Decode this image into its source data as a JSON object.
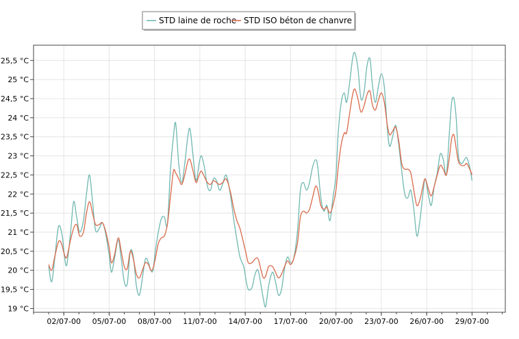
{
  "chart_data": {
    "type": "line",
    "title": "",
    "xlabel": "",
    "ylabel": "",
    "ylim": [
      18.9,
      25.9
    ],
    "xlim": [
      0,
      31.2
    ],
    "grid": true,
    "legend_position": "top-center",
    "y_ticks": [
      {
        "value": 19,
        "label": "19 °C"
      },
      {
        "value": 19.5,
        "label": "19,5 °C"
      },
      {
        "value": 20,
        "label": "20 °C"
      },
      {
        "value": 20.5,
        "label": "20,5 °C"
      },
      {
        "value": 21,
        "label": "21 °C"
      },
      {
        "value": 21.5,
        "label": "21,5 °C"
      },
      {
        "value": 22,
        "label": "22 °C"
      },
      {
        "value": 22.5,
        "label": "22,5 °C"
      },
      {
        "value": 23,
        "label": "23 °C"
      },
      {
        "value": 23.5,
        "label": "23,5 °C"
      },
      {
        "value": 24,
        "label": "24 °C"
      },
      {
        "value": 24.5,
        "label": "24,5 °C"
      },
      {
        "value": 25,
        "label": "25 °C"
      },
      {
        "value": 25.5,
        "label": "25,5 °C"
      }
    ],
    "x_ticks": [
      {
        "value": 2,
        "label": "02/07-00"
      },
      {
        "value": 5,
        "label": "05/07-00"
      },
      {
        "value": 8,
        "label": "08/07-00"
      },
      {
        "value": 11,
        "label": "11/07-00"
      },
      {
        "value": 14,
        "label": "14/07-00"
      },
      {
        "value": 17,
        "label": "17/07-00"
      },
      {
        "value": 20,
        "label": "20/07-00"
      },
      {
        "value": 23,
        "label": "23/07-00"
      },
      {
        "value": 26,
        "label": "26/07-00"
      },
      {
        "value": 29,
        "label": "29/07-00"
      }
    ],
    "series": [
      {
        "name": "STD laine de roche",
        "color": "#6fb7b0",
        "points": [
          [
            1.0,
            20.1
          ],
          [
            1.2,
            19.7
          ],
          [
            1.4,
            20.3
          ],
          [
            1.65,
            21.15
          ],
          [
            1.9,
            20.9
          ],
          [
            2.05,
            20.35
          ],
          [
            2.2,
            20.15
          ],
          [
            2.45,
            21.0
          ],
          [
            2.65,
            21.8
          ],
          [
            2.85,
            21.4
          ],
          [
            3.05,
            21.0
          ],
          [
            3.3,
            21.3
          ],
          [
            3.5,
            22.0
          ],
          [
            3.7,
            22.5
          ],
          [
            3.9,
            21.8
          ],
          [
            4.1,
            21.05
          ],
          [
            4.35,
            21.1
          ],
          [
            4.55,
            21.25
          ],
          [
            4.75,
            21.0
          ],
          [
            5.0,
            20.4
          ],
          [
            5.15,
            19.95
          ],
          [
            5.35,
            20.3
          ],
          [
            5.6,
            20.8
          ],
          [
            5.8,
            20.3
          ],
          [
            6.0,
            19.7
          ],
          [
            6.2,
            19.65
          ],
          [
            6.4,
            20.5
          ],
          [
            6.6,
            20.35
          ],
          [
            6.8,
            19.6
          ],
          [
            7.0,
            19.35
          ],
          [
            7.2,
            19.8
          ],
          [
            7.4,
            20.3
          ],
          [
            7.6,
            20.2
          ],
          [
            7.75,
            20.0
          ],
          [
            7.9,
            20.0
          ],
          [
            8.05,
            20.5
          ],
          [
            8.25,
            21.0
          ],
          [
            8.45,
            21.35
          ],
          [
            8.65,
            21.4
          ],
          [
            8.85,
            21.2
          ],
          [
            9.05,
            22.6
          ],
          [
            9.25,
            23.5
          ],
          [
            9.4,
            23.85
          ],
          [
            9.6,
            22.8
          ],
          [
            9.8,
            22.3
          ],
          [
            10.0,
            22.8
          ],
          [
            10.2,
            23.5
          ],
          [
            10.35,
            23.7
          ],
          [
            10.55,
            23.0
          ],
          [
            10.75,
            22.35
          ],
          [
            10.95,
            22.8
          ],
          [
            11.1,
            23.0
          ],
          [
            11.3,
            22.7
          ],
          [
            11.5,
            22.2
          ],
          [
            11.7,
            22.1
          ],
          [
            11.9,
            22.4
          ],
          [
            12.1,
            22.35
          ],
          [
            12.3,
            22.1
          ],
          [
            12.5,
            22.25
          ],
          [
            12.7,
            22.5
          ],
          [
            12.85,
            22.35
          ],
          [
            13.05,
            21.9
          ],
          [
            13.25,
            21.3
          ],
          [
            13.45,
            20.8
          ],
          [
            13.65,
            20.35
          ],
          [
            13.9,
            20.1
          ],
          [
            14.05,
            19.75
          ],
          [
            14.2,
            19.5
          ],
          [
            14.45,
            19.55
          ],
          [
            14.65,
            19.9
          ],
          [
            14.85,
            20.0
          ],
          [
            15.05,
            19.6
          ],
          [
            15.2,
            19.25
          ],
          [
            15.35,
            19.05
          ],
          [
            15.55,
            19.6
          ],
          [
            15.8,
            19.95
          ],
          [
            16.0,
            19.7
          ],
          [
            16.2,
            19.35
          ],
          [
            16.4,
            19.5
          ],
          [
            16.6,
            20.05
          ],
          [
            16.8,
            20.35
          ],
          [
            17.0,
            20.2
          ],
          [
            17.2,
            20.3
          ],
          [
            17.45,
            21.0
          ],
          [
            17.65,
            22.1
          ],
          [
            17.85,
            22.3
          ],
          [
            18.05,
            22.1
          ],
          [
            18.25,
            22.3
          ],
          [
            18.45,
            22.7
          ],
          [
            18.65,
            22.9
          ],
          [
            18.8,
            22.7
          ],
          [
            19.0,
            21.9
          ],
          [
            19.2,
            21.55
          ],
          [
            19.4,
            21.7
          ],
          [
            19.6,
            21.3
          ],
          [
            19.8,
            21.9
          ],
          [
            20.0,
            22.5
          ],
          [
            20.15,
            23.6
          ],
          [
            20.35,
            24.4
          ],
          [
            20.55,
            24.65
          ],
          [
            20.7,
            24.4
          ],
          [
            20.9,
            24.9
          ],
          [
            21.1,
            25.55
          ],
          [
            21.25,
            25.7
          ],
          [
            21.45,
            25.3
          ],
          [
            21.65,
            24.5
          ],
          [
            21.85,
            24.65
          ],
          [
            22.05,
            25.35
          ],
          [
            22.25,
            25.55
          ],
          [
            22.4,
            24.9
          ],
          [
            22.6,
            24.4
          ],
          [
            22.8,
            24.8
          ],
          [
            23.0,
            25.15
          ],
          [
            23.2,
            24.8
          ],
          [
            23.4,
            23.7
          ],
          [
            23.55,
            23.25
          ],
          [
            23.75,
            23.5
          ],
          [
            23.95,
            23.8
          ],
          [
            24.15,
            23.3
          ],
          [
            24.35,
            22.6
          ],
          [
            24.55,
            22.0
          ],
          [
            24.75,
            21.9
          ],
          [
            24.95,
            22.1
          ],
          [
            25.15,
            21.6
          ],
          [
            25.35,
            20.9
          ],
          [
            25.55,
            21.3
          ],
          [
            25.75,
            22.0
          ],
          [
            25.9,
            22.4
          ],
          [
            26.1,
            22.0
          ],
          [
            26.3,
            21.7
          ],
          [
            26.5,
            22.2
          ],
          [
            26.7,
            22.55
          ],
          [
            26.9,
            23.05
          ],
          [
            27.1,
            22.9
          ],
          [
            27.3,
            22.5
          ],
          [
            27.5,
            23.6
          ],
          [
            27.65,
            24.4
          ],
          [
            27.8,
            24.5
          ],
          [
            27.95,
            24.0
          ],
          [
            28.1,
            23.0
          ],
          [
            28.3,
            22.8
          ],
          [
            28.5,
            22.9
          ],
          [
            28.65,
            22.95
          ],
          [
            28.85,
            22.7
          ],
          [
            29.0,
            22.35
          ]
        ]
      },
      {
        "name": "STD ISO béton de chanvre",
        "color": "#d9694a",
        "points": [
          [
            1.0,
            20.15
          ],
          [
            1.2,
            20.0
          ],
          [
            1.4,
            20.35
          ],
          [
            1.65,
            20.75
          ],
          [
            1.85,
            20.7
          ],
          [
            2.05,
            20.4
          ],
          [
            2.2,
            20.35
          ],
          [
            2.45,
            20.8
          ],
          [
            2.65,
            21.1
          ],
          [
            2.85,
            21.2
          ],
          [
            3.05,
            20.9
          ],
          [
            3.3,
            21.0
          ],
          [
            3.5,
            21.5
          ],
          [
            3.7,
            21.8
          ],
          [
            3.9,
            21.5
          ],
          [
            4.1,
            21.2
          ],
          [
            4.35,
            21.2
          ],
          [
            4.55,
            21.25
          ],
          [
            4.75,
            21.05
          ],
          [
            5.0,
            20.6
          ],
          [
            5.15,
            20.2
          ],
          [
            5.35,
            20.4
          ],
          [
            5.6,
            20.85
          ],
          [
            5.8,
            20.5
          ],
          [
            6.0,
            20.1
          ],
          [
            6.2,
            20.05
          ],
          [
            6.4,
            20.5
          ],
          [
            6.6,
            20.3
          ],
          [
            6.8,
            19.9
          ],
          [
            7.0,
            19.8
          ],
          [
            7.2,
            20.0
          ],
          [
            7.4,
            20.2
          ],
          [
            7.6,
            20.15
          ],
          [
            7.75,
            20.0
          ],
          [
            7.9,
            20.05
          ],
          [
            8.05,
            20.3
          ],
          [
            8.25,
            20.7
          ],
          [
            8.45,
            20.85
          ],
          [
            8.65,
            20.9
          ],
          [
            8.85,
            21.2
          ],
          [
            9.05,
            21.9
          ],
          [
            9.25,
            22.6
          ],
          [
            9.4,
            22.55
          ],
          [
            9.6,
            22.4
          ],
          [
            9.8,
            22.25
          ],
          [
            10.0,
            22.5
          ],
          [
            10.2,
            22.85
          ],
          [
            10.35,
            22.9
          ],
          [
            10.55,
            22.6
          ],
          [
            10.75,
            22.3
          ],
          [
            10.95,
            22.5
          ],
          [
            11.1,
            22.6
          ],
          [
            11.3,
            22.45
          ],
          [
            11.5,
            22.3
          ],
          [
            11.7,
            22.25
          ],
          [
            11.9,
            22.35
          ],
          [
            12.1,
            22.3
          ],
          [
            12.3,
            22.25
          ],
          [
            12.5,
            22.3
          ],
          [
            12.7,
            22.4
          ],
          [
            12.85,
            22.3
          ],
          [
            13.05,
            22.0
          ],
          [
            13.25,
            21.6
          ],
          [
            13.45,
            21.3
          ],
          [
            13.65,
            21.1
          ],
          [
            13.9,
            20.7
          ],
          [
            14.05,
            20.45
          ],
          [
            14.2,
            20.2
          ],
          [
            14.45,
            20.2
          ],
          [
            14.65,
            20.3
          ],
          [
            14.85,
            20.3
          ],
          [
            15.05,
            20.0
          ],
          [
            15.2,
            19.8
          ],
          [
            15.35,
            19.85
          ],
          [
            15.55,
            20.1
          ],
          [
            15.8,
            20.1
          ],
          [
            16.0,
            19.95
          ],
          [
            16.2,
            19.8
          ],
          [
            16.4,
            19.9
          ],
          [
            16.6,
            20.1
          ],
          [
            16.8,
            20.25
          ],
          [
            17.0,
            20.15
          ],
          [
            17.2,
            20.3
          ],
          [
            17.45,
            20.7
          ],
          [
            17.65,
            21.4
          ],
          [
            17.85,
            21.55
          ],
          [
            18.05,
            21.5
          ],
          [
            18.25,
            21.6
          ],
          [
            18.45,
            21.9
          ],
          [
            18.65,
            22.2
          ],
          [
            18.8,
            22.1
          ],
          [
            19.0,
            21.7
          ],
          [
            19.2,
            21.6
          ],
          [
            19.4,
            21.65
          ],
          [
            19.6,
            21.5
          ],
          [
            19.8,
            21.7
          ],
          [
            20.0,
            22.1
          ],
          [
            20.15,
            22.7
          ],
          [
            20.35,
            23.3
          ],
          [
            20.55,
            23.6
          ],
          [
            20.7,
            23.6
          ],
          [
            20.9,
            24.1
          ],
          [
            21.1,
            24.6
          ],
          [
            21.25,
            24.75
          ],
          [
            21.45,
            24.5
          ],
          [
            21.65,
            24.15
          ],
          [
            21.85,
            24.3
          ],
          [
            22.05,
            24.6
          ],
          [
            22.25,
            24.7
          ],
          [
            22.4,
            24.35
          ],
          [
            22.6,
            24.2
          ],
          [
            22.8,
            24.45
          ],
          [
            23.0,
            24.65
          ],
          [
            23.2,
            24.4
          ],
          [
            23.4,
            23.8
          ],
          [
            23.55,
            23.55
          ],
          [
            23.75,
            23.65
          ],
          [
            23.95,
            23.75
          ],
          [
            24.15,
            23.4
          ],
          [
            24.35,
            22.8
          ],
          [
            24.55,
            22.65
          ],
          [
            24.75,
            22.65
          ],
          [
            24.95,
            22.55
          ],
          [
            25.15,
            22.1
          ],
          [
            25.35,
            21.7
          ],
          [
            25.55,
            21.85
          ],
          [
            25.75,
            22.2
          ],
          [
            25.9,
            22.4
          ],
          [
            26.1,
            22.15
          ],
          [
            26.3,
            21.95
          ],
          [
            26.5,
            22.2
          ],
          [
            26.7,
            22.5
          ],
          [
            26.9,
            22.75
          ],
          [
            27.1,
            22.65
          ],
          [
            27.3,
            22.5
          ],
          [
            27.5,
            22.95
          ],
          [
            27.65,
            23.45
          ],
          [
            27.8,
            23.55
          ],
          [
            27.95,
            23.2
          ],
          [
            28.1,
            22.85
          ],
          [
            28.3,
            22.75
          ],
          [
            28.5,
            22.75
          ],
          [
            28.65,
            22.8
          ],
          [
            28.85,
            22.65
          ],
          [
            29.0,
            22.5
          ]
        ]
      }
    ]
  }
}
